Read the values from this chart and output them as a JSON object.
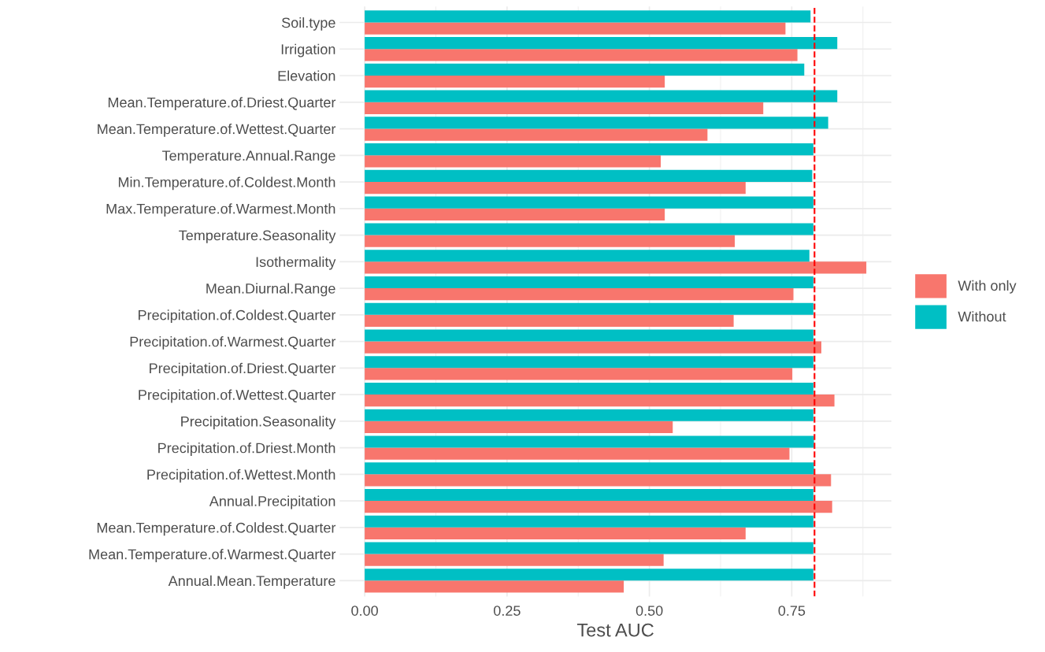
{
  "chart_data": {
    "type": "bar",
    "orientation": "horizontal",
    "xlabel": "Test AUC",
    "categories": [
      "Soil.type",
      "Irrigation",
      "Elevation",
      "Mean.Temperature.of.Driest.Quarter",
      "Mean.Temperature.of.Wettest.Quarter",
      "Temperature.Annual.Range",
      "Min.Temperature.of.Coldest.Month",
      "Max.Temperature.of.Warmest.Month",
      "Temperature.Seasonality",
      "Isothermality",
      "Mean.Diurnal.Range",
      "Precipitation.of.Coldest.Quarter",
      "Precipitation.of.Warmest.Quarter",
      "Precipitation.of.Driest.Quarter",
      "Precipitation.of.Wettest.Quarter",
      "Precipitation.Seasonality",
      "Precipitation.of.Driest.Month",
      "Precipitation.of.Wettest.Month",
      "Annual.Precipitation",
      "Mean.Temperature.of.Coldest.Quarter",
      "Mean.Temperature.of.Warmest.Quarter",
      "Annual.Mean.Temperature"
    ],
    "series": [
      {
        "name": "With only",
        "color": "#f8766d",
        "values": [
          0.739,
          0.76,
          0.527,
          0.7,
          0.602,
          0.52,
          0.669,
          0.527,
          0.65,
          0.881,
          0.753,
          0.648,
          0.802,
          0.751,
          0.825,
          0.541,
          0.746,
          0.819,
          0.821,
          0.669,
          0.525,
          0.455
        ]
      },
      {
        "name": "Without",
        "color": "#00bfc4",
        "values": [
          0.783,
          0.83,
          0.772,
          0.83,
          0.814,
          0.788,
          0.786,
          0.788,
          0.788,
          0.781,
          0.788,
          0.788,
          0.788,
          0.788,
          0.788,
          0.788,
          0.789,
          0.789,
          0.788,
          0.788,
          0.788,
          0.788
        ]
      }
    ],
    "xlim": [
      -0.044,
      0.925
    ],
    "xticks": [
      {
        "value": 0,
        "label": "0.00"
      },
      {
        "value": 0.125,
        "label": null
      },
      {
        "value": 0.25,
        "label": "0.25"
      },
      {
        "value": 0.375,
        "label": null
      },
      {
        "value": 0.5,
        "label": "0.50"
      },
      {
        "value": 0.625,
        "label": null
      },
      {
        "value": 0.75,
        "label": "0.75"
      },
      {
        "value": 0.875,
        "label": null
      }
    ],
    "ref_lines": [
      {
        "axis": "x",
        "value": 0.79,
        "label": null,
        "color": "#ff0000",
        "line_style": "dashed"
      }
    ],
    "grid": true,
    "legend": "right"
  }
}
